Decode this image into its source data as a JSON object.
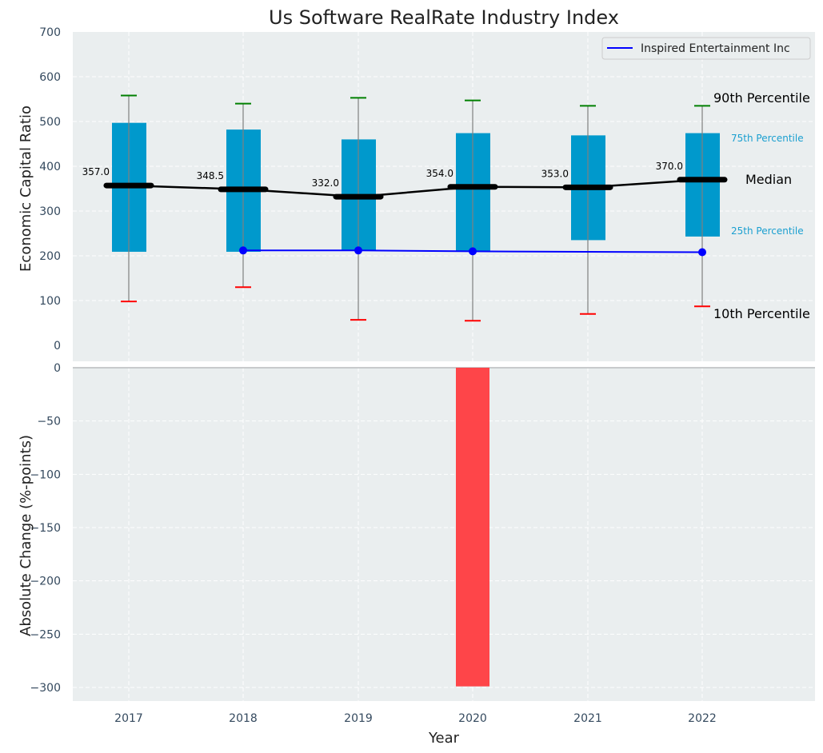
{
  "chart_data": [
    {
      "type": "box",
      "panel": "top",
      "title": "Us Software RealRate Industry Index",
      "xlabel": "",
      "ylabel": "Economic Capital Ratio",
      "categories": [
        "2017",
        "2018",
        "2019",
        "2020",
        "2021",
        "2022"
      ],
      "ylim": [
        0,
        700
      ],
      "yticks": [
        0,
        100,
        200,
        300,
        400,
        500,
        600,
        700
      ],
      "grid": true,
      "percentiles": {
        "p10": [
          98,
          130,
          57,
          55,
          70,
          87
        ],
        "p25": [
          209,
          209,
          212,
          210,
          235,
          243
        ],
        "median": [
          357.0,
          348.5,
          332.0,
          354.0,
          353.0,
          370.0
        ],
        "p75": [
          497,
          482,
          460,
          474,
          469,
          474
        ],
        "p90": [
          558,
          540,
          553,
          547,
          535,
          535
        ]
      },
      "median_labels": [
        "357.0",
        "348.5",
        "332.0",
        "354.0",
        "353.0",
        "370.0"
      ],
      "series": [
        {
          "name": "Inspired Entertainment Inc",
          "type": "line",
          "x": [
            "2018",
            "2019",
            "2020",
            "2022"
          ],
          "values": [
            212,
            212,
            210,
            208
          ],
          "color": "#0000ff"
        }
      ],
      "legend": {
        "entries": [
          "Inspired Entertainment Inc"
        ],
        "placement": "top-right"
      },
      "annotations": {
        "p90": "90th Percentile",
        "p75": "75th Percentile",
        "median": "Median",
        "p25": "25th Percentile",
        "p10": "10th Percentile"
      },
      "colors": {
        "box": "#0099cc",
        "median": "#000000",
        "p90_cap": "#008000",
        "p10_cap": "#ff0000",
        "whisker": "#808080",
        "company_line": "#0000ff",
        "p75_label": "#1a9fd0",
        "background": "#eaeeef"
      }
    },
    {
      "type": "bar",
      "panel": "bottom",
      "xlabel": "Year",
      "ylabel": "Absolute Change (%-points)",
      "categories": [
        "2017",
        "2018",
        "2019",
        "2020",
        "2021",
        "2022"
      ],
      "values": [
        null,
        null,
        null,
        -299,
        null,
        null
      ],
      "ylim": [
        -315,
        0
      ],
      "yticks": [
        0,
        -50,
        -100,
        -150,
        -200,
        -250,
        -300
      ],
      "ytick_labels": [
        "0",
        "−50",
        "−100",
        "−150",
        "−200",
        "−250",
        "−300"
      ],
      "grid": true,
      "colors": {
        "negative": "#ff3b3f",
        "background": "#eaeeef"
      }
    }
  ]
}
